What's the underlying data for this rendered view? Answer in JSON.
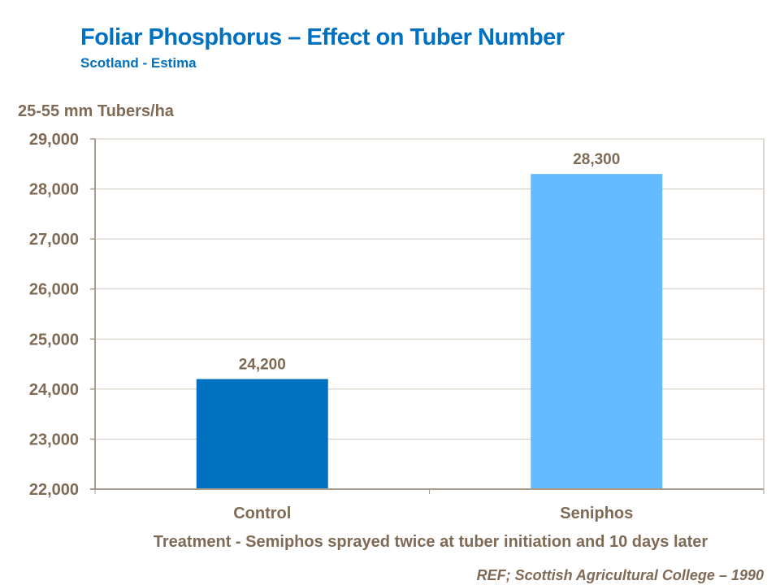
{
  "chart_data": {
    "type": "bar",
    "title": "Foliar Phosphorus  – Effect on Tuber Number",
    "subtitle": "Scotland - Estima",
    "ylabel": "25-55 mm Tubers/ha",
    "xlabel": "Treatment - Semiphos sprayed twice at tuber initiation and 10 days later",
    "categories": [
      "Control",
      "Seniphos"
    ],
    "values": [
      24200,
      28300
    ],
    "data_labels": [
      "24,200",
      "28,300"
    ],
    "colors": [
      "#0070c0",
      "#66bbff"
    ],
    "ylim": [
      22000,
      29000
    ],
    "yticks": [
      "22,000",
      "23,000",
      "24,000",
      "25,000",
      "26,000",
      "27,000",
      "28,000",
      "29,000"
    ],
    "grid": true,
    "legend": "none"
  },
  "reference": "REF; Scottish Agricultural College – 1990"
}
